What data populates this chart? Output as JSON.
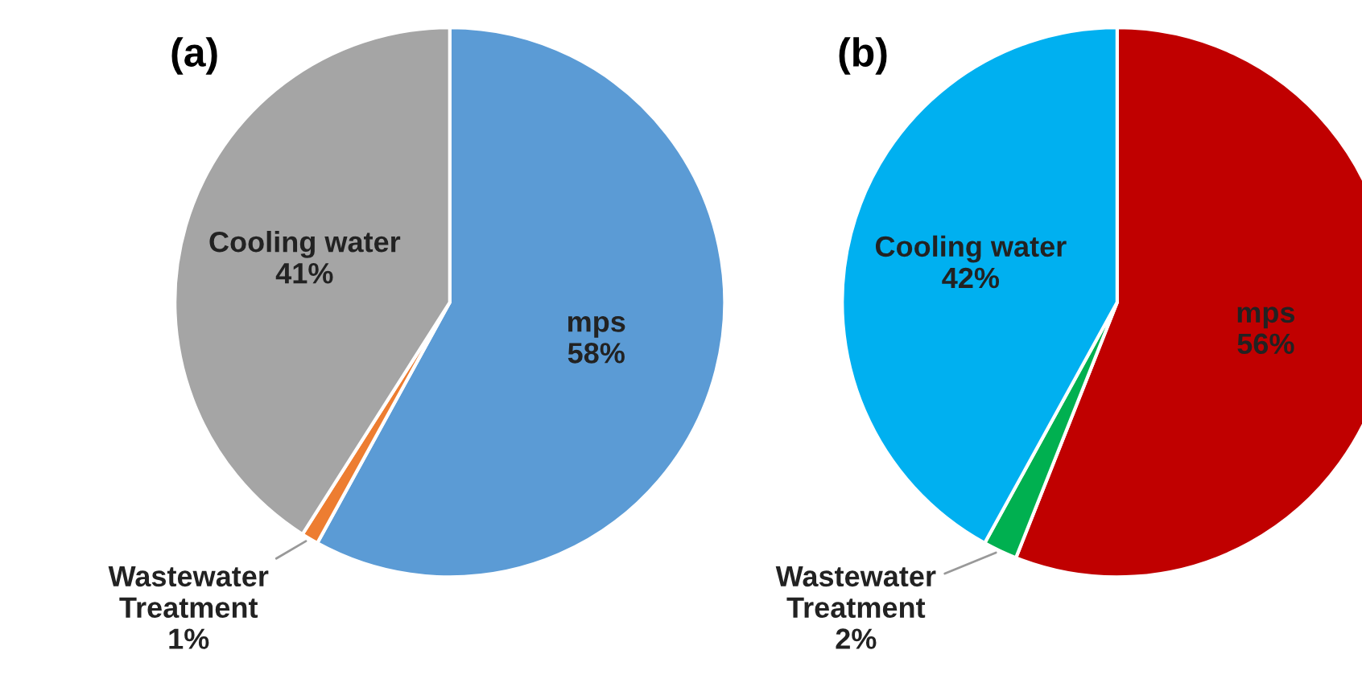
{
  "chart_data": [
    {
      "type": "pie",
      "title": "(a)",
      "categories": [
        "mps",
        "Wastewater Treatment",
        "Cooling water"
      ],
      "values": [
        58,
        1,
        41
      ],
      "value_labels": [
        "58%",
        "1%",
        "41%"
      ],
      "colors": [
        "#5b9bd5",
        "#ed7d31",
        "#a5a5a5"
      ],
      "legend": false
    },
    {
      "type": "pie",
      "title": "(b)",
      "categories": [
        "mps",
        "Wastewater Treatment",
        "Cooling water"
      ],
      "values": [
        56,
        2,
        42
      ],
      "value_labels": [
        "56%",
        "2%",
        "42%"
      ],
      "colors": [
        "#c00000",
        "#00b050",
        "#00b0f0"
      ],
      "legend": false
    }
  ]
}
